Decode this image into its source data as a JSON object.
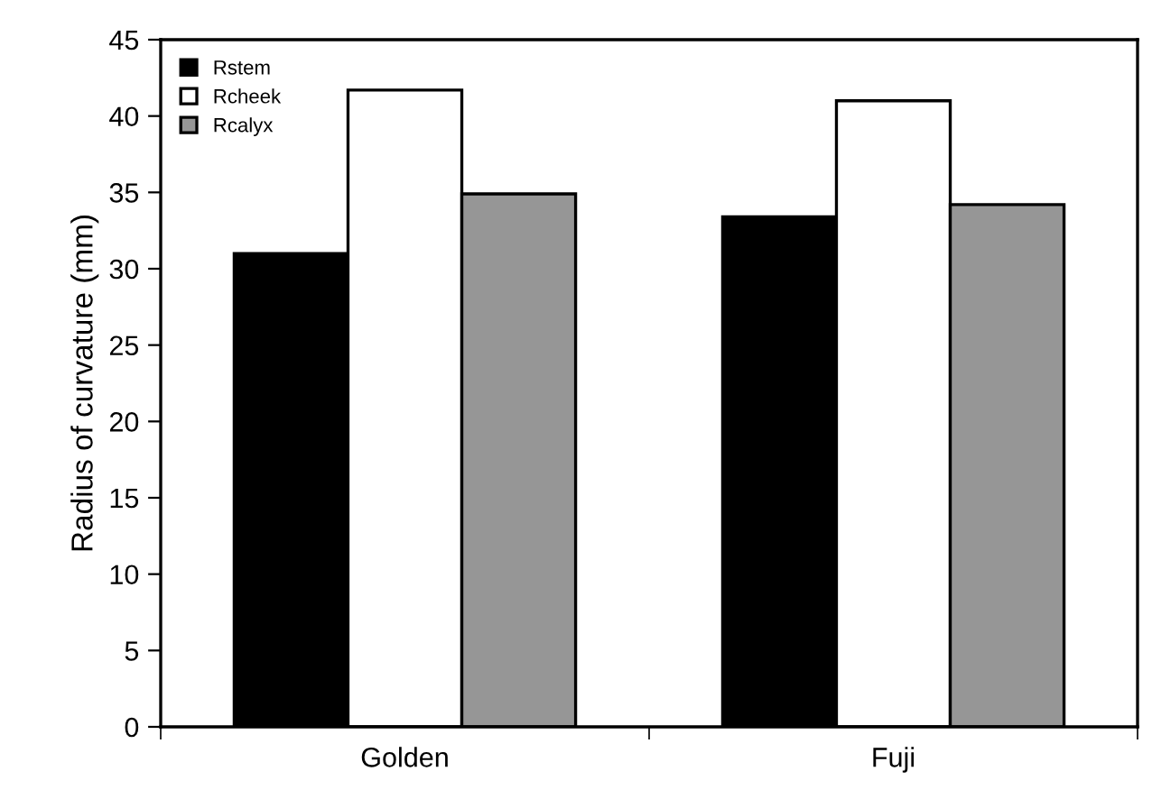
{
  "chart_data": {
    "type": "bar",
    "ylabel": "Radius of curvature (mm)",
    "categories": [
      "Golden",
      "Fuji"
    ],
    "series": [
      {
        "name": "Rstem",
        "color": "#000000",
        "values": [
          31.0,
          33.4
        ]
      },
      {
        "name": "Rcheek",
        "color": "#ffffff",
        "values": [
          41.7,
          41.0
        ]
      },
      {
        "name": "Rcalyx",
        "color": "#969696",
        "values": [
          34.9,
          34.2
        ]
      }
    ],
    "ylim": [
      0,
      45
    ],
    "yticks": [
      0,
      5,
      10,
      15,
      20,
      25,
      30,
      35,
      40,
      45
    ],
    "grid": false,
    "legend": "top left"
  }
}
